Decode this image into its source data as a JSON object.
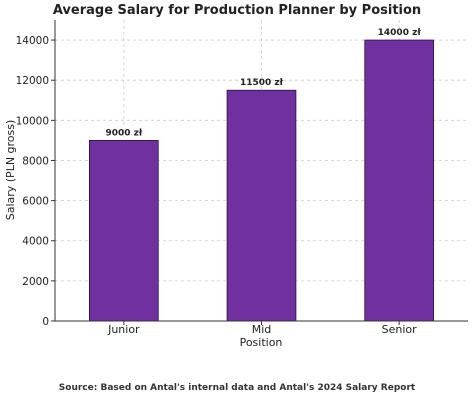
{
  "chart_data": {
    "type": "bar",
    "title": "Average Salary for Production Planner by Position",
    "xlabel": "Position",
    "ylabel": "Salary (PLN gross)",
    "categories": [
      "Junior",
      "Mid",
      "Senior"
    ],
    "values": [
      9000,
      11500,
      14000
    ],
    "data_labels": [
      "9000 zł",
      "11500 zł",
      "14000 zł"
    ],
    "yticks": [
      0,
      2000,
      4000,
      6000,
      8000,
      10000,
      12000,
      14000
    ],
    "ylim": [
      0,
      15000
    ],
    "grid": true,
    "bar_color": "#7030a0"
  },
  "footer": {
    "source": "Source: Based on Antal's internal data and Antal's 2024 Salary Report"
  }
}
